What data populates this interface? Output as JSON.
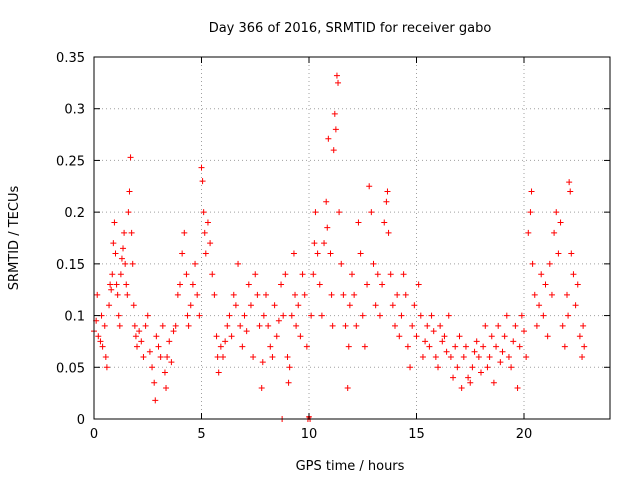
{
  "chart_data": {
    "type": "scatter",
    "title": "Day 366 of 2016, SRMTID for receiver gabo",
    "xlabel": "GPS time / hours",
    "ylabel": "SRMTID / TECUs",
    "xlim": [
      0,
      24
    ],
    "ylim": [
      0,
      0.35
    ],
    "grid": true,
    "marker": "+",
    "x_ticks": [
      0,
      5,
      10,
      15,
      20
    ],
    "x_tick_labels": [
      "0",
      "5",
      "10",
      "15",
      "20"
    ],
    "y_ticks": [
      0,
      0.05,
      0.1,
      0.15,
      0.2,
      0.25,
      0.3,
      0.35
    ],
    "y_tick_labels": [
      "0",
      "0.05",
      "0.1",
      "0.15",
      "0.2",
      "0.25",
      "0.3",
      "0.35"
    ],
    "series": [
      {
        "name": "SRMTID",
        "color": "#ff0000",
        "points": [
          [
            0.0,
            0.085
          ],
          [
            0.1,
            0.095
          ],
          [
            0.15,
            0.12
          ],
          [
            0.2,
            0.08
          ],
          [
            0.3,
            0.075
          ],
          [
            0.35,
            0.1
          ],
          [
            0.4,
            0.07
          ],
          [
            0.5,
            0.09
          ],
          [
            0.55,
            0.06
          ],
          [
            0.6,
            0.05
          ],
          [
            0.7,
            0.11
          ],
          [
            0.75,
            0.13
          ],
          [
            0.8,
            0.125
          ],
          [
            0.85,
            0.14
          ],
          [
            0.9,
            0.17
          ],
          [
            0.95,
            0.19
          ],
          [
            1.0,
            0.16
          ],
          [
            1.05,
            0.13
          ],
          [
            1.1,
            0.12
          ],
          [
            1.15,
            0.1
          ],
          [
            1.2,
            0.09
          ],
          [
            1.25,
            0.14
          ],
          [
            1.3,
            0.155
          ],
          [
            1.35,
            0.165
          ],
          [
            1.4,
            0.18
          ],
          [
            1.45,
            0.15
          ],
          [
            1.5,
            0.13
          ],
          [
            1.55,
            0.12
          ],
          [
            1.6,
            0.2
          ],
          [
            1.65,
            0.22
          ],
          [
            1.7,
            0.253
          ],
          [
            1.75,
            0.18
          ],
          [
            1.8,
            0.15
          ],
          [
            1.85,
            0.11
          ],
          [
            1.9,
            0.09
          ],
          [
            1.95,
            0.08
          ],
          [
            2.0,
            0.07
          ],
          [
            2.1,
            0.085
          ],
          [
            2.2,
            0.075
          ],
          [
            2.3,
            0.06
          ],
          [
            2.4,
            0.09
          ],
          [
            2.5,
            0.1
          ],
          [
            2.6,
            0.065
          ],
          [
            2.7,
            0.05
          ],
          [
            2.8,
            0.035
          ],
          [
            2.85,
            0.018
          ],
          [
            2.9,
            0.08
          ],
          [
            3.0,
            0.07
          ],
          [
            3.1,
            0.06
          ],
          [
            3.2,
            0.09
          ],
          [
            3.3,
            0.045
          ],
          [
            3.35,
            0.03
          ],
          [
            3.4,
            0.06
          ],
          [
            3.5,
            0.075
          ],
          [
            3.6,
            0.055
          ],
          [
            3.7,
            0.085
          ],
          [
            3.8,
            0.09
          ],
          [
            3.9,
            0.12
          ],
          [
            4.0,
            0.13
          ],
          [
            4.1,
            0.16
          ],
          [
            4.2,
            0.18
          ],
          [
            4.3,
            0.14
          ],
          [
            4.35,
            0.1
          ],
          [
            4.4,
            0.09
          ],
          [
            4.5,
            0.11
          ],
          [
            4.6,
            0.13
          ],
          [
            4.7,
            0.15
          ],
          [
            4.8,
            0.12
          ],
          [
            4.9,
            0.1
          ],
          [
            5.0,
            0.243
          ],
          [
            5.05,
            0.23
          ],
          [
            5.1,
            0.2
          ],
          [
            5.15,
            0.18
          ],
          [
            5.2,
            0.16
          ],
          [
            5.3,
            0.19
          ],
          [
            5.4,
            0.17
          ],
          [
            5.5,
            0.14
          ],
          [
            5.6,
            0.12
          ],
          [
            5.7,
            0.08
          ],
          [
            5.75,
            0.06
          ],
          [
            5.8,
            0.045
          ],
          [
            5.9,
            0.07
          ],
          [
            6.0,
            0.06
          ],
          [
            6.1,
            0.075
          ],
          [
            6.2,
            0.09
          ],
          [
            6.3,
            0.1
          ],
          [
            6.4,
            0.08
          ],
          [
            6.5,
            0.12
          ],
          [
            6.6,
            0.11
          ],
          [
            6.7,
            0.15
          ],
          [
            6.8,
            0.09
          ],
          [
            6.9,
            0.07
          ],
          [
            7.0,
            0.1
          ],
          [
            7.1,
            0.085
          ],
          [
            7.2,
            0.13
          ],
          [
            7.3,
            0.11
          ],
          [
            7.4,
            0.06
          ],
          [
            7.5,
            0.14
          ],
          [
            7.6,
            0.12
          ],
          [
            7.7,
            0.09
          ],
          [
            7.8,
            0.03
          ],
          [
            7.85,
            0.055
          ],
          [
            7.9,
            0.1
          ],
          [
            8.0,
            0.12
          ],
          [
            8.1,
            0.09
          ],
          [
            8.2,
            0.07
          ],
          [
            8.3,
            0.06
          ],
          [
            8.4,
            0.11
          ],
          [
            8.5,
            0.08
          ],
          [
            8.6,
            0.095
          ],
          [
            8.7,
            0.13
          ],
          [
            8.75,
            0.0
          ],
          [
            8.8,
            0.1
          ],
          [
            8.9,
            0.14
          ],
          [
            9.0,
            0.06
          ],
          [
            9.05,
            0.035
          ],
          [
            9.1,
            0.05
          ],
          [
            9.2,
            0.1
          ],
          [
            9.3,
            0.16
          ],
          [
            9.35,
            0.12
          ],
          [
            9.4,
            0.09
          ],
          [
            9.5,
            0.11
          ],
          [
            9.6,
            0.08
          ],
          [
            9.7,
            0.14
          ],
          [
            9.8,
            0.12
          ],
          [
            9.9,
            0.07
          ],
          [
            9.95,
            0.0
          ],
          [
            10.0,
            0.002
          ],
          [
            10.05,
            0.0
          ],
          [
            10.1,
            0.1
          ],
          [
            10.2,
            0.14
          ],
          [
            10.25,
            0.17
          ],
          [
            10.3,
            0.2
          ],
          [
            10.4,
            0.16
          ],
          [
            10.5,
            0.13
          ],
          [
            10.6,
            0.1
          ],
          [
            10.7,
            0.17
          ],
          [
            10.8,
            0.21
          ],
          [
            10.85,
            0.185
          ],
          [
            10.9,
            0.271
          ],
          [
            11.0,
            0.16
          ],
          [
            11.05,
            0.12
          ],
          [
            11.1,
            0.09
          ],
          [
            11.15,
            0.26
          ],
          [
            11.2,
            0.295
          ],
          [
            11.25,
            0.28
          ],
          [
            11.3,
            0.332
          ],
          [
            11.35,
            0.325
          ],
          [
            11.4,
            0.2
          ],
          [
            11.5,
            0.15
          ],
          [
            11.6,
            0.12
          ],
          [
            11.7,
            0.09
          ],
          [
            11.8,
            0.03
          ],
          [
            11.85,
            0.07
          ],
          [
            11.9,
            0.11
          ],
          [
            12.0,
            0.14
          ],
          [
            12.1,
            0.12
          ],
          [
            12.2,
            0.09
          ],
          [
            12.3,
            0.19
          ],
          [
            12.4,
            0.16
          ],
          [
            12.5,
            0.1
          ],
          [
            12.6,
            0.07
          ],
          [
            12.7,
            0.13
          ],
          [
            12.8,
            0.225
          ],
          [
            12.9,
            0.2
          ],
          [
            13.0,
            0.15
          ],
          [
            13.1,
            0.11
          ],
          [
            13.2,
            0.14
          ],
          [
            13.3,
            0.1
          ],
          [
            13.4,
            0.13
          ],
          [
            13.5,
            0.19
          ],
          [
            13.6,
            0.21
          ],
          [
            13.65,
            0.22
          ],
          [
            13.7,
            0.18
          ],
          [
            13.8,
            0.14
          ],
          [
            13.9,
            0.11
          ],
          [
            14.0,
            0.09
          ],
          [
            14.1,
            0.12
          ],
          [
            14.2,
            0.08
          ],
          [
            14.3,
            0.1
          ],
          [
            14.4,
            0.14
          ],
          [
            14.5,
            0.12
          ],
          [
            14.6,
            0.07
          ],
          [
            14.7,
            0.05
          ],
          [
            14.8,
            0.09
          ],
          [
            14.9,
            0.11
          ],
          [
            15.0,
            0.08
          ],
          [
            15.1,
            0.13
          ],
          [
            15.2,
            0.1
          ],
          [
            15.3,
            0.06
          ],
          [
            15.4,
            0.075
          ],
          [
            15.5,
            0.09
          ],
          [
            15.6,
            0.07
          ],
          [
            15.7,
            0.1
          ],
          [
            15.8,
            0.085
          ],
          [
            15.9,
            0.06
          ],
          [
            16.0,
            0.05
          ],
          [
            16.1,
            0.09
          ],
          [
            16.2,
            0.075
          ],
          [
            16.3,
            0.08
          ],
          [
            16.4,
            0.065
          ],
          [
            16.5,
            0.1
          ],
          [
            16.6,
            0.06
          ],
          [
            16.7,
            0.04
          ],
          [
            16.8,
            0.07
          ],
          [
            16.9,
            0.05
          ],
          [
            17.0,
            0.08
          ],
          [
            17.1,
            0.03
          ],
          [
            17.2,
            0.06
          ],
          [
            17.3,
            0.07
          ],
          [
            17.4,
            0.04
          ],
          [
            17.5,
            0.035
          ],
          [
            17.6,
            0.05
          ],
          [
            17.7,
            0.065
          ],
          [
            17.8,
            0.075
          ],
          [
            17.9,
            0.06
          ],
          [
            18.0,
            0.045
          ],
          [
            18.1,
            0.07
          ],
          [
            18.2,
            0.09
          ],
          [
            18.3,
            0.05
          ],
          [
            18.4,
            0.06
          ],
          [
            18.5,
            0.08
          ],
          [
            18.6,
            0.035
          ],
          [
            18.7,
            0.07
          ],
          [
            18.8,
            0.09
          ],
          [
            18.9,
            0.055
          ],
          [
            19.0,
            0.065
          ],
          [
            19.1,
            0.08
          ],
          [
            19.2,
            0.1
          ],
          [
            19.3,
            0.06
          ],
          [
            19.4,
            0.05
          ],
          [
            19.5,
            0.075
          ],
          [
            19.6,
            0.09
          ],
          [
            19.7,
            0.03
          ],
          [
            19.8,
            0.07
          ],
          [
            19.9,
            0.1
          ],
          [
            20.0,
            0.085
          ],
          [
            20.1,
            0.06
          ],
          [
            20.2,
            0.18
          ],
          [
            20.3,
            0.2
          ],
          [
            20.35,
            0.22
          ],
          [
            20.4,
            0.15
          ],
          [
            20.5,
            0.12
          ],
          [
            20.6,
            0.09
          ],
          [
            20.7,
            0.11
          ],
          [
            20.8,
            0.14
          ],
          [
            20.9,
            0.1
          ],
          [
            21.0,
            0.13
          ],
          [
            21.1,
            0.08
          ],
          [
            21.2,
            0.15
          ],
          [
            21.3,
            0.12
          ],
          [
            21.4,
            0.18
          ],
          [
            21.5,
            0.2
          ],
          [
            21.6,
            0.16
          ],
          [
            21.7,
            0.19
          ],
          [
            21.8,
            0.09
          ],
          [
            21.9,
            0.07
          ],
          [
            22.0,
            0.12
          ],
          [
            22.05,
            0.1
          ],
          [
            22.1,
            0.229
          ],
          [
            22.15,
            0.22
          ],
          [
            22.2,
            0.16
          ],
          [
            22.3,
            0.14
          ],
          [
            22.4,
            0.11
          ],
          [
            22.5,
            0.13
          ],
          [
            22.6,
            0.08
          ],
          [
            22.7,
            0.06
          ],
          [
            22.75,
            0.09
          ],
          [
            22.8,
            0.07
          ]
        ]
      }
    ]
  }
}
